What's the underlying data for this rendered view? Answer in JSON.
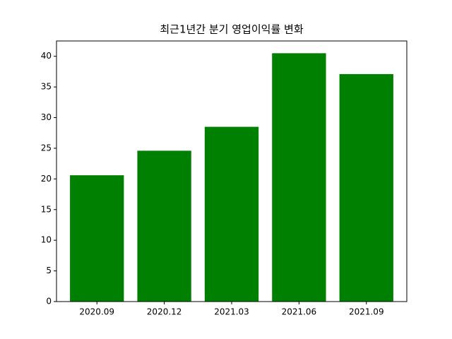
{
  "chart_data": {
    "type": "bar",
    "title": "최근1년간 분기 영업이익률 변화",
    "categories": [
      "2020.09",
      "2020.12",
      "2021.03",
      "2021.06",
      "2021.09"
    ],
    "values": [
      20.6,
      24.6,
      28.5,
      40.5,
      37.1
    ],
    "color": "#008000",
    "ylim": [
      0,
      42.5
    ],
    "yticks": [
      0,
      5,
      10,
      15,
      20,
      25,
      30,
      35,
      40
    ],
    "grid": false
  }
}
